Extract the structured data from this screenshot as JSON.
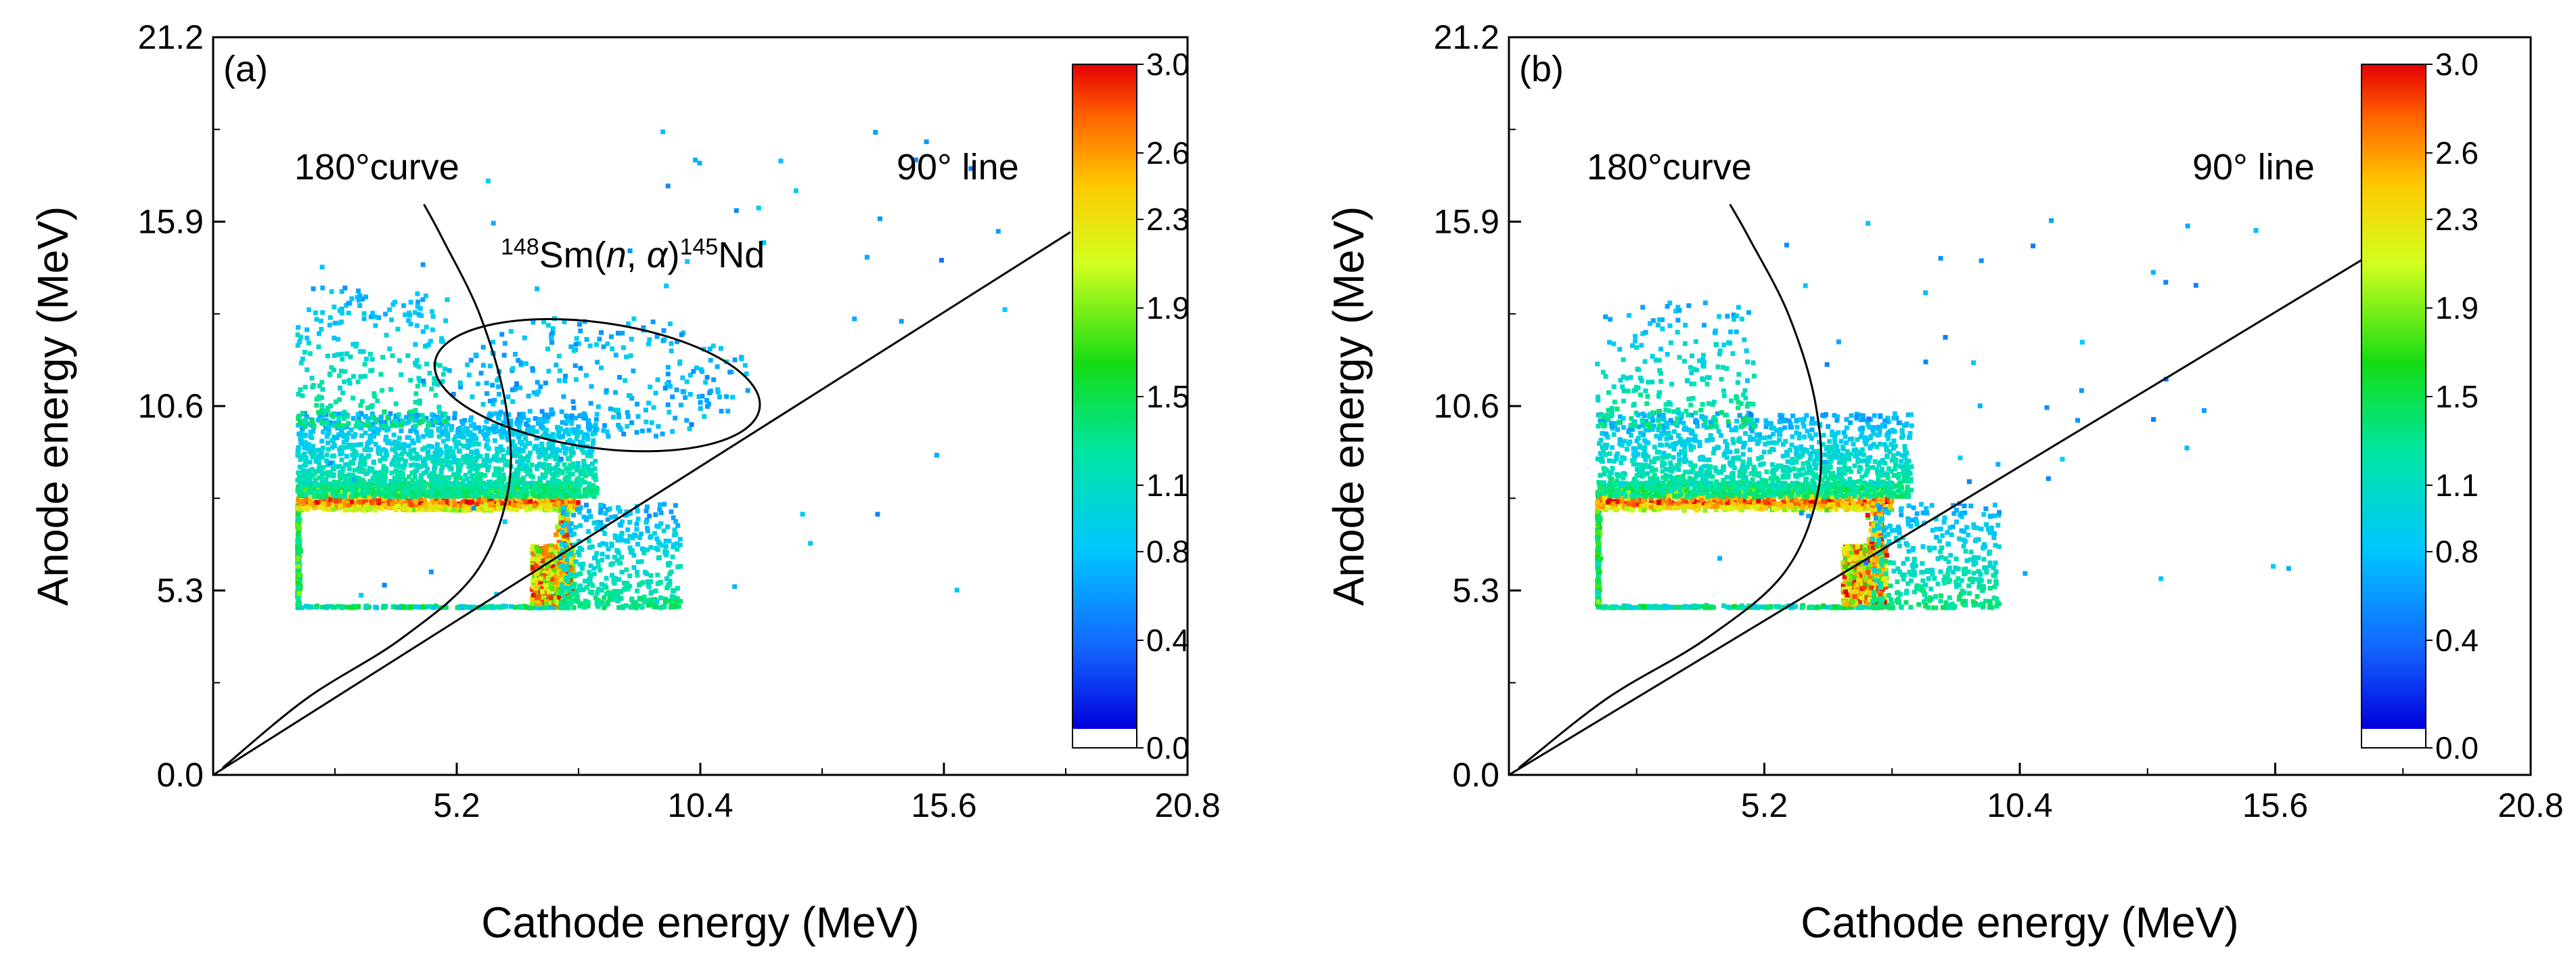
{
  "chart_data": [
    {
      "type": "heatmap",
      "panel_label": "(a)",
      "xlabel": "Cathode energy (MeV)",
      "ylabel": "Anode energy (MeV)",
      "xlim": [
        0,
        20.8
      ],
      "ylim": [
        0,
        21.2
      ],
      "xticks": [
        "5.2",
        "10.4",
        "15.6",
        "20.8"
      ],
      "yticks": [
        "0.0",
        "5.3",
        "10.6",
        "15.9",
        "21.2"
      ],
      "colorbar": {
        "range": [
          0,
          3.0
        ],
        "ticks": [
          "0.0",
          "0.4",
          "0.8",
          "1.1",
          "1.5",
          "1.9",
          "2.3",
          "2.6",
          "3.0"
        ]
      },
      "annotations": {
        "curve180": "180°curve",
        "line90": "90° line",
        "reaction": {
          "pre_sup": "148",
          "sm": "Sm(",
          "n": "n",
          "comma": ", ",
          "alpha": "α",
          "close": ")",
          "post_sup": "145",
          "nd": "Nd"
        }
      },
      "ellipse": {
        "cx": 8.2,
        "cy": 11.2,
        "rx": 3.5,
        "ry": 1.8
      },
      "diagonal": {
        "x0": 0,
        "y0": 0,
        "x1": 18.3,
        "y1": 15.6
      },
      "curve180": [
        [
          0.2,
          0.2
        ],
        [
          2.0,
          2.2
        ],
        [
          4.0,
          3.9
        ],
        [
          5.6,
          5.8
        ],
        [
          6.3,
          8.2
        ],
        [
          6.25,
          10.6
        ],
        [
          5.7,
          13.2
        ],
        [
          4.9,
          15.4
        ],
        [
          4.5,
          16.4
        ]
      ],
      "distributions": [
        {
          "kind": "box_outline",
          "x": [
            1.8,
            7.6
          ],
          "y": [
            4.8,
            7.8
          ],
          "n": 900
        },
        {
          "kind": "band",
          "x": [
            1.8,
            7.8
          ],
          "y": [
            7.6,
            8.4
          ],
          "n": 1200
        },
        {
          "kind": "cloud",
          "x": [
            1.8,
            8.2
          ],
          "y": [
            8.0,
            10.4
          ],
          "n": 1600
        },
        {
          "kind": "cloud",
          "x": [
            1.8,
            5.0
          ],
          "y": [
            10.0,
            14.0
          ],
          "n": 260
        },
        {
          "kind": "blob",
          "x": [
            6.8,
            7.7
          ],
          "y": [
            4.9,
            6.6
          ],
          "n": 500
        },
        {
          "kind": "cloud",
          "x": [
            7.4,
            10.0
          ],
          "y": [
            4.8,
            7.8
          ],
          "n": 420
        },
        {
          "kind": "ellipse",
          "x": [
            5.0,
            11.5
          ],
          "y": [
            9.6,
            13.2
          ],
          "n": 260
        },
        {
          "kind": "sparse",
          "x": [
            1.8,
            17.0
          ],
          "y": [
            4.5,
            18.8
          ],
          "n": 55
        }
      ]
    },
    {
      "type": "heatmap",
      "panel_label": "(b)",
      "xlabel": "Cathode energy (MeV)",
      "ylabel": "Anode energy (MeV)",
      "xlim": [
        0,
        20.8
      ],
      "ylim": [
        0,
        21.2
      ],
      "xticks": [
        "5.2",
        "10.4",
        "15.6",
        "20.8"
      ],
      "yticks": [
        "0.0",
        "5.3",
        "10.6",
        "15.9",
        "21.2"
      ],
      "colorbar": {
        "range": [
          0,
          3.0
        ],
        "ticks": [
          "0.0",
          "0.4",
          "0.8",
          "1.1",
          "1.5",
          "1.9",
          "2.3",
          "2.6",
          "3.0"
        ]
      },
      "annotations": {
        "curve180": "180°curve",
        "line90": "90° line"
      },
      "diagonal": {
        "x0": 0,
        "y0": 0,
        "x1": 18.3,
        "y1": 15.6
      },
      "curve180": [
        [
          0.2,
          0.2
        ],
        [
          2.0,
          2.2
        ],
        [
          4.0,
          3.9
        ],
        [
          5.6,
          5.8
        ],
        [
          6.3,
          8.2
        ],
        [
          6.25,
          10.6
        ],
        [
          5.7,
          13.2
        ],
        [
          4.9,
          15.4
        ],
        [
          4.5,
          16.4
        ]
      ],
      "distributions": [
        {
          "kind": "box_outline",
          "x": [
            1.8,
            7.6
          ],
          "y": [
            4.8,
            7.8
          ],
          "n": 900
        },
        {
          "kind": "band",
          "x": [
            1.8,
            7.8
          ],
          "y": [
            7.6,
            8.4
          ],
          "n": 1100
        },
        {
          "kind": "cloud",
          "x": [
            1.8,
            8.2
          ],
          "y": [
            8.0,
            10.4
          ],
          "n": 1300
        },
        {
          "kind": "cloud",
          "x": [
            1.8,
            5.0
          ],
          "y": [
            10.0,
            13.6
          ],
          "n": 220
        },
        {
          "kind": "blob",
          "x": [
            6.8,
            7.7
          ],
          "y": [
            4.9,
            6.6
          ],
          "n": 500
        },
        {
          "kind": "cloud",
          "x": [
            7.4,
            10.0
          ],
          "y": [
            4.8,
            7.8
          ],
          "n": 360
        },
        {
          "kind": "sparse",
          "x": [
            4.0,
            16.0
          ],
          "y": [
            5.5,
            16.0
          ],
          "n": 45
        }
      ]
    }
  ]
}
